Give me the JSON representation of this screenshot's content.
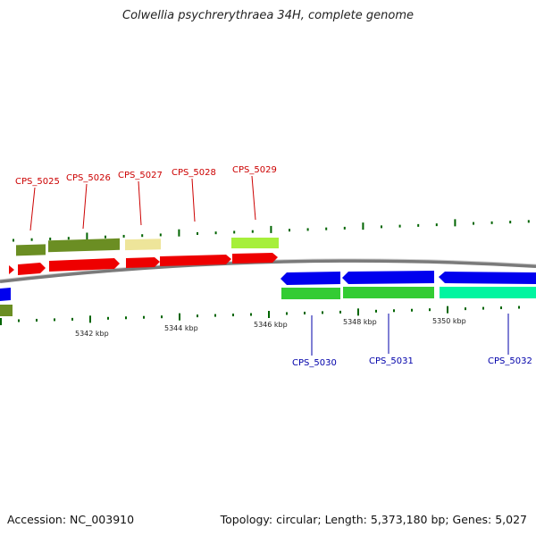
{
  "title": "Colwellia psychrerythraea 34H, complete genome",
  "footer": {
    "accession": "Accession: NC_003910",
    "summary": "Topology: circular; Length: 5,373,180 bp; Genes: 5,027"
  },
  "colors": {
    "red": "#ee0000",
    "blue": "#0000ee",
    "olive": "#6b8e23",
    "khaki": "#f0e68c",
    "lime": "#9afa2a",
    "green": "#33cc33",
    "aqua": "#00fa9a",
    "backbone": "#888888",
    "tick": "#006400",
    "label_top": "#cc0000",
    "label_bottom": "#0000aa"
  },
  "genes_top": [
    {
      "label": "CPS_5025"
    },
    {
      "label": "CPS_5026"
    },
    {
      "label": "CPS_5027"
    },
    {
      "label": "CPS_5028"
    },
    {
      "label": "CPS_5029"
    }
  ],
  "genes_bottom": [
    {
      "label": "CPS_5030"
    },
    {
      "label": "CPS_5031"
    },
    {
      "label": "CPS_5032"
    }
  ],
  "scale_labels": [
    "5342 kbp",
    "5344 kbp",
    "5346 kbp",
    "5348 kbp",
    "5350 kbp"
  ]
}
